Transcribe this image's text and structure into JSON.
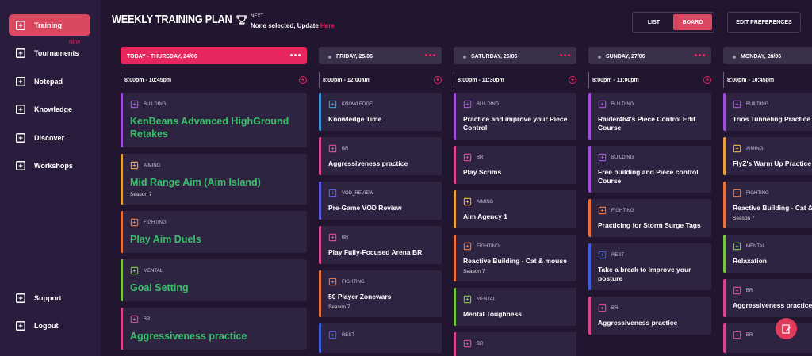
{
  "sidebar": {
    "items": [
      {
        "label": "Training",
        "active": true
      },
      {
        "label": "Tournaments",
        "badge": "NEW"
      },
      {
        "label": "Notepad"
      },
      {
        "label": "Knowledge"
      },
      {
        "label": "Discover"
      },
      {
        "label": "Workshops"
      }
    ],
    "bottom": [
      {
        "label": "Support"
      },
      {
        "label": "Logout"
      }
    ]
  },
  "header": {
    "title": "WEEKLY TRAINING PLAN",
    "next_label": "NEXT",
    "next_text": "None selected, Update ",
    "next_link": "Here",
    "view_options": [
      "LIST",
      "BOARD"
    ],
    "active_view": "BOARD",
    "edit_button": "EDIT PREFERENCES"
  },
  "category_colors": {
    "BUILDING": "#9d4fd8",
    "AIMING": "#e8a13f",
    "FIGHTING": "#e8703a",
    "MENTAL": "#76c442",
    "BR": "#d9468c",
    "KNOWLEDGE": "#3a8fd0",
    "VOD_REVIEW": "#5b5be3",
    "REST": "#3f5fe0"
  },
  "columns": [
    {
      "day": "TODAY - THURSDAY, 24/06",
      "today": true,
      "time": "8:00pm - 10:45pm",
      "cards": [
        {
          "category": "BUILDING",
          "title": "KenBeans Advanced HighGround Retakes"
        },
        {
          "category": "AIMING",
          "title": "Mid Range Aim (Aim Island)",
          "subtitle": "Season 7"
        },
        {
          "category": "FIGHTING",
          "title": "Play Aim Duels"
        },
        {
          "category": "MENTAL",
          "title": "Goal Setting"
        },
        {
          "category": "BR",
          "title": "Aggressiveness practice"
        }
      ]
    },
    {
      "day": "FRIDAY, 25/06",
      "time": "8:00pm - 12:00am",
      "cards": [
        {
          "category": "KNOWLEDGE",
          "title": "Knowledge Time"
        },
        {
          "category": "BR",
          "title": "Aggressiveness practice"
        },
        {
          "category": "VOD_REVIEW",
          "title": "Pre-Game VOD Review"
        },
        {
          "category": "BR",
          "title": "Play Fully-Focused Arena BR"
        },
        {
          "category": "FIGHTING",
          "title": "50 Player Zonewars",
          "subtitle": "Season 7"
        },
        {
          "category": "REST"
        }
      ]
    },
    {
      "day": "SATURDAY, 26/06",
      "time": "8:00pm - 11:30pm",
      "cards": [
        {
          "category": "BUILDING",
          "title": "Practice and improve your Piece Control"
        },
        {
          "category": "BR",
          "title": "Play Scrims"
        },
        {
          "category": "AIMING",
          "title": "Aim Agency 1"
        },
        {
          "category": "FIGHTING",
          "title": "Reactive Building - Cat & mouse",
          "subtitle": "Season 7"
        },
        {
          "category": "MENTAL",
          "title": "Mental Toughness"
        },
        {
          "category": "BR"
        }
      ]
    },
    {
      "day": "SUNDAY, 27/06",
      "time": "8:00pm - 11:00pm",
      "cards": [
        {
          "category": "BUILDING",
          "title": "Raider464's Piece Control Edit Course"
        },
        {
          "category": "BUILDING",
          "title": "Free building and Piece control Course"
        },
        {
          "category": "FIGHTING",
          "title": "Practicing for Storm Surge Tags"
        },
        {
          "category": "REST",
          "title": "Take a break to improve your posture"
        },
        {
          "category": "BR",
          "title": "Aggressiveness practice"
        }
      ]
    },
    {
      "day": "MONDAY, 28/06",
      "time": "8:00pm - 10:45pm",
      "cards": [
        {
          "category": "BUILDING",
          "title": "Trios Tunneling Practice"
        },
        {
          "category": "AIMING",
          "title": "FlyZ's Warm Up Practice"
        },
        {
          "category": "FIGHTING",
          "title": "Reactive Building - Cat & mouse",
          "subtitle": "Season 7"
        },
        {
          "category": "MENTAL",
          "title": "Relaxation"
        },
        {
          "category": "BR",
          "title": "Aggressiveness practice"
        },
        {
          "category": "BR"
        }
      ]
    }
  ]
}
